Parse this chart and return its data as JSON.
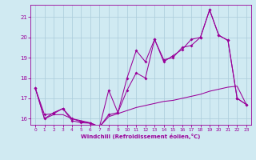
{
  "xlabel": "Windchill (Refroidissement éolien,°C)",
  "bg_color": "#d0eaf2",
  "grid_color": "#aacbda",
  "line_color": "#990099",
  "xlim": [
    -0.5,
    23.5
  ],
  "ylim": [
    15.7,
    21.6
  ],
  "yticks": [
    16,
    17,
    18,
    19,
    20,
    21
  ],
  "xticks": [
    0,
    1,
    2,
    3,
    4,
    5,
    6,
    7,
    8,
    9,
    10,
    11,
    12,
    13,
    14,
    15,
    16,
    17,
    18,
    19,
    20,
    21,
    22,
    23
  ],
  "s1_x": [
    0,
    1,
    2,
    3,
    4,
    5,
    6,
    7,
    8,
    9,
    10,
    11,
    12,
    13,
    14,
    15,
    16,
    17,
    18,
    19,
    20,
    21,
    22,
    23
  ],
  "s1_y": [
    17.5,
    16.2,
    16.25,
    16.5,
    15.9,
    15.8,
    15.78,
    15.6,
    17.4,
    16.3,
    18.0,
    19.35,
    18.8,
    19.9,
    18.8,
    19.1,
    19.4,
    19.9,
    20.0,
    21.35,
    20.1,
    19.85,
    17.0,
    16.7
  ],
  "s2_x": [
    0,
    1,
    2,
    3,
    4,
    5,
    6,
    7,
    8,
    9,
    10,
    11,
    12,
    13,
    14,
    15,
    16,
    17,
    18,
    19,
    20,
    21,
    22,
    23
  ],
  "s2_y": [
    17.5,
    16.0,
    16.2,
    16.2,
    16.0,
    15.9,
    15.8,
    15.6,
    16.1,
    16.25,
    16.4,
    16.55,
    16.65,
    16.75,
    16.85,
    16.9,
    17.0,
    17.1,
    17.2,
    17.35,
    17.45,
    17.55,
    17.6,
    16.7
  ],
  "s3_x": [
    0,
    1,
    2,
    3,
    4,
    5,
    6,
    7,
    8,
    9,
    10,
    11,
    12,
    13,
    14,
    15,
    16,
    17,
    18,
    19,
    20,
    21,
    22,
    23
  ],
  "s3_y": [
    17.5,
    16.0,
    16.3,
    16.5,
    16.0,
    15.85,
    15.78,
    15.6,
    16.2,
    16.3,
    17.4,
    18.25,
    18.0,
    19.9,
    18.9,
    19.0,
    19.5,
    19.6,
    20.0,
    21.35,
    20.1,
    19.85,
    17.0,
    16.7
  ]
}
